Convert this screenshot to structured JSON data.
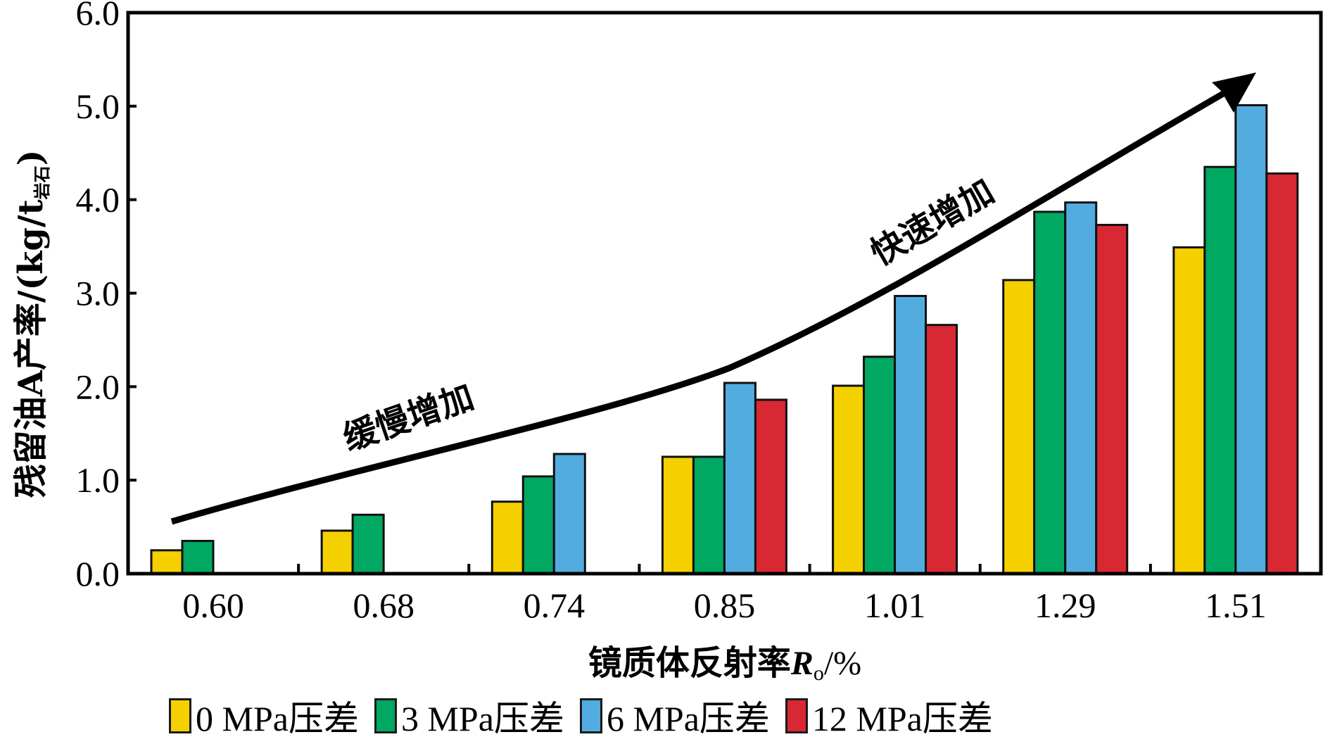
{
  "chart_data": {
    "type": "bar",
    "title": "",
    "xlabel": "镜质体反射率",
    "xlabel_symbol": "R",
    "xlabel_subscript": "o",
    "xlabel_unit": "/%",
    "ylabel": "残留油A产率/(kg/t",
    "ylabel_subscript": "岩石",
    "ylabel_close": ")",
    "ylim": [
      0,
      6.0
    ],
    "yticks": [
      "0.0",
      "1.0",
      "2.0",
      "3.0",
      "4.0",
      "5.0",
      "6.0"
    ],
    "grid": false,
    "categories": [
      "0.60",
      "0.68",
      "0.74",
      "0.85",
      "1.01",
      "1.29",
      "1.51"
    ],
    "series": [
      {
        "name": "0 MPa压差",
        "color": "#F5D000",
        "values": [
          0.25,
          0.46,
          0.77,
          1.25,
          2.01,
          3.14,
          3.49
        ]
      },
      {
        "name": "3 MPa压差",
        "color": "#00A862",
        "values": [
          0.35,
          0.63,
          1.04,
          1.25,
          2.32,
          3.87,
          4.35
        ]
      },
      {
        "name": "6 MPa压差",
        "color": "#52ACE0",
        "values": [
          null,
          null,
          1.28,
          2.04,
          2.97,
          3.97,
          5.01
        ]
      },
      {
        "name": "12 MPa压差",
        "color": "#D72833",
        "values": [
          null,
          null,
          null,
          1.86,
          2.66,
          3.73,
          4.28
        ]
      }
    ],
    "annotations": [
      {
        "text": "缓慢增加",
        "position": "along trend arrow, lower-left segment"
      },
      {
        "text": "快速增加",
        "position": "along trend arrow, upper-right segment"
      }
    ],
    "trend_arrow": {
      "description": "black curved arrow rising from 0.60 to 1.51, slow then fast increase"
    },
    "legend_position": "bottom"
  }
}
